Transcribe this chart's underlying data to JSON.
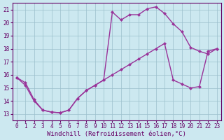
{
  "xlabel": "Windchill (Refroidissement éolien,°C)",
  "xlim": [
    -0.5,
    23.5
  ],
  "ylim": [
    12.5,
    21.5
  ],
  "xticks": [
    0,
    1,
    2,
    3,
    4,
    5,
    6,
    7,
    8,
    9,
    10,
    11,
    12,
    13,
    14,
    15,
    16,
    17,
    18,
    19,
    20,
    21,
    22,
    23
  ],
  "yticks": [
    13,
    14,
    15,
    16,
    17,
    18,
    19,
    20,
    21
  ],
  "bg_color": "#cce8f0",
  "grid_color": "#9abfcc",
  "line_color": "#993399",
  "line1_x": [
    0,
    1,
    2,
    3,
    4,
    5,
    6,
    7,
    8,
    9,
    10,
    11,
    12,
    13,
    14,
    15,
    16,
    17,
    18,
    19,
    20,
    21,
    22,
    23
  ],
  "line1_y": [
    15.8,
    15.4,
    14.1,
    13.3,
    13.15,
    13.1,
    13.3,
    14.2,
    14.8,
    15.2,
    15.6,
    20.8,
    20.2,
    20.6,
    20.6,
    21.05,
    21.2,
    20.7,
    19.9,
    19.3,
    18.1,
    17.8,
    17.6,
    18.0
  ],
  "line2_x": [
    0,
    1,
    2,
    3,
    4,
    5,
    6,
    7,
    8,
    9,
    10,
    11,
    12,
    13,
    14,
    15,
    16,
    17,
    18,
    19,
    20,
    21,
    22,
    23
  ],
  "line2_y": [
    15.8,
    15.2,
    14.0,
    13.3,
    13.15,
    13.1,
    13.3,
    14.2,
    14.8,
    15.2,
    15.6,
    16.0,
    16.4,
    16.8,
    17.2,
    17.6,
    18.0,
    18.4,
    15.6,
    15.3,
    15.0,
    15.1,
    17.8,
    18.0
  ],
  "marker": "D",
  "markersize": 2.5,
  "linewidth": 1.0,
  "tick_fontsize": 5.5,
  "xlabel_fontsize": 6.5,
  "text_color": "#660066",
  "spine_color": "#660066"
}
